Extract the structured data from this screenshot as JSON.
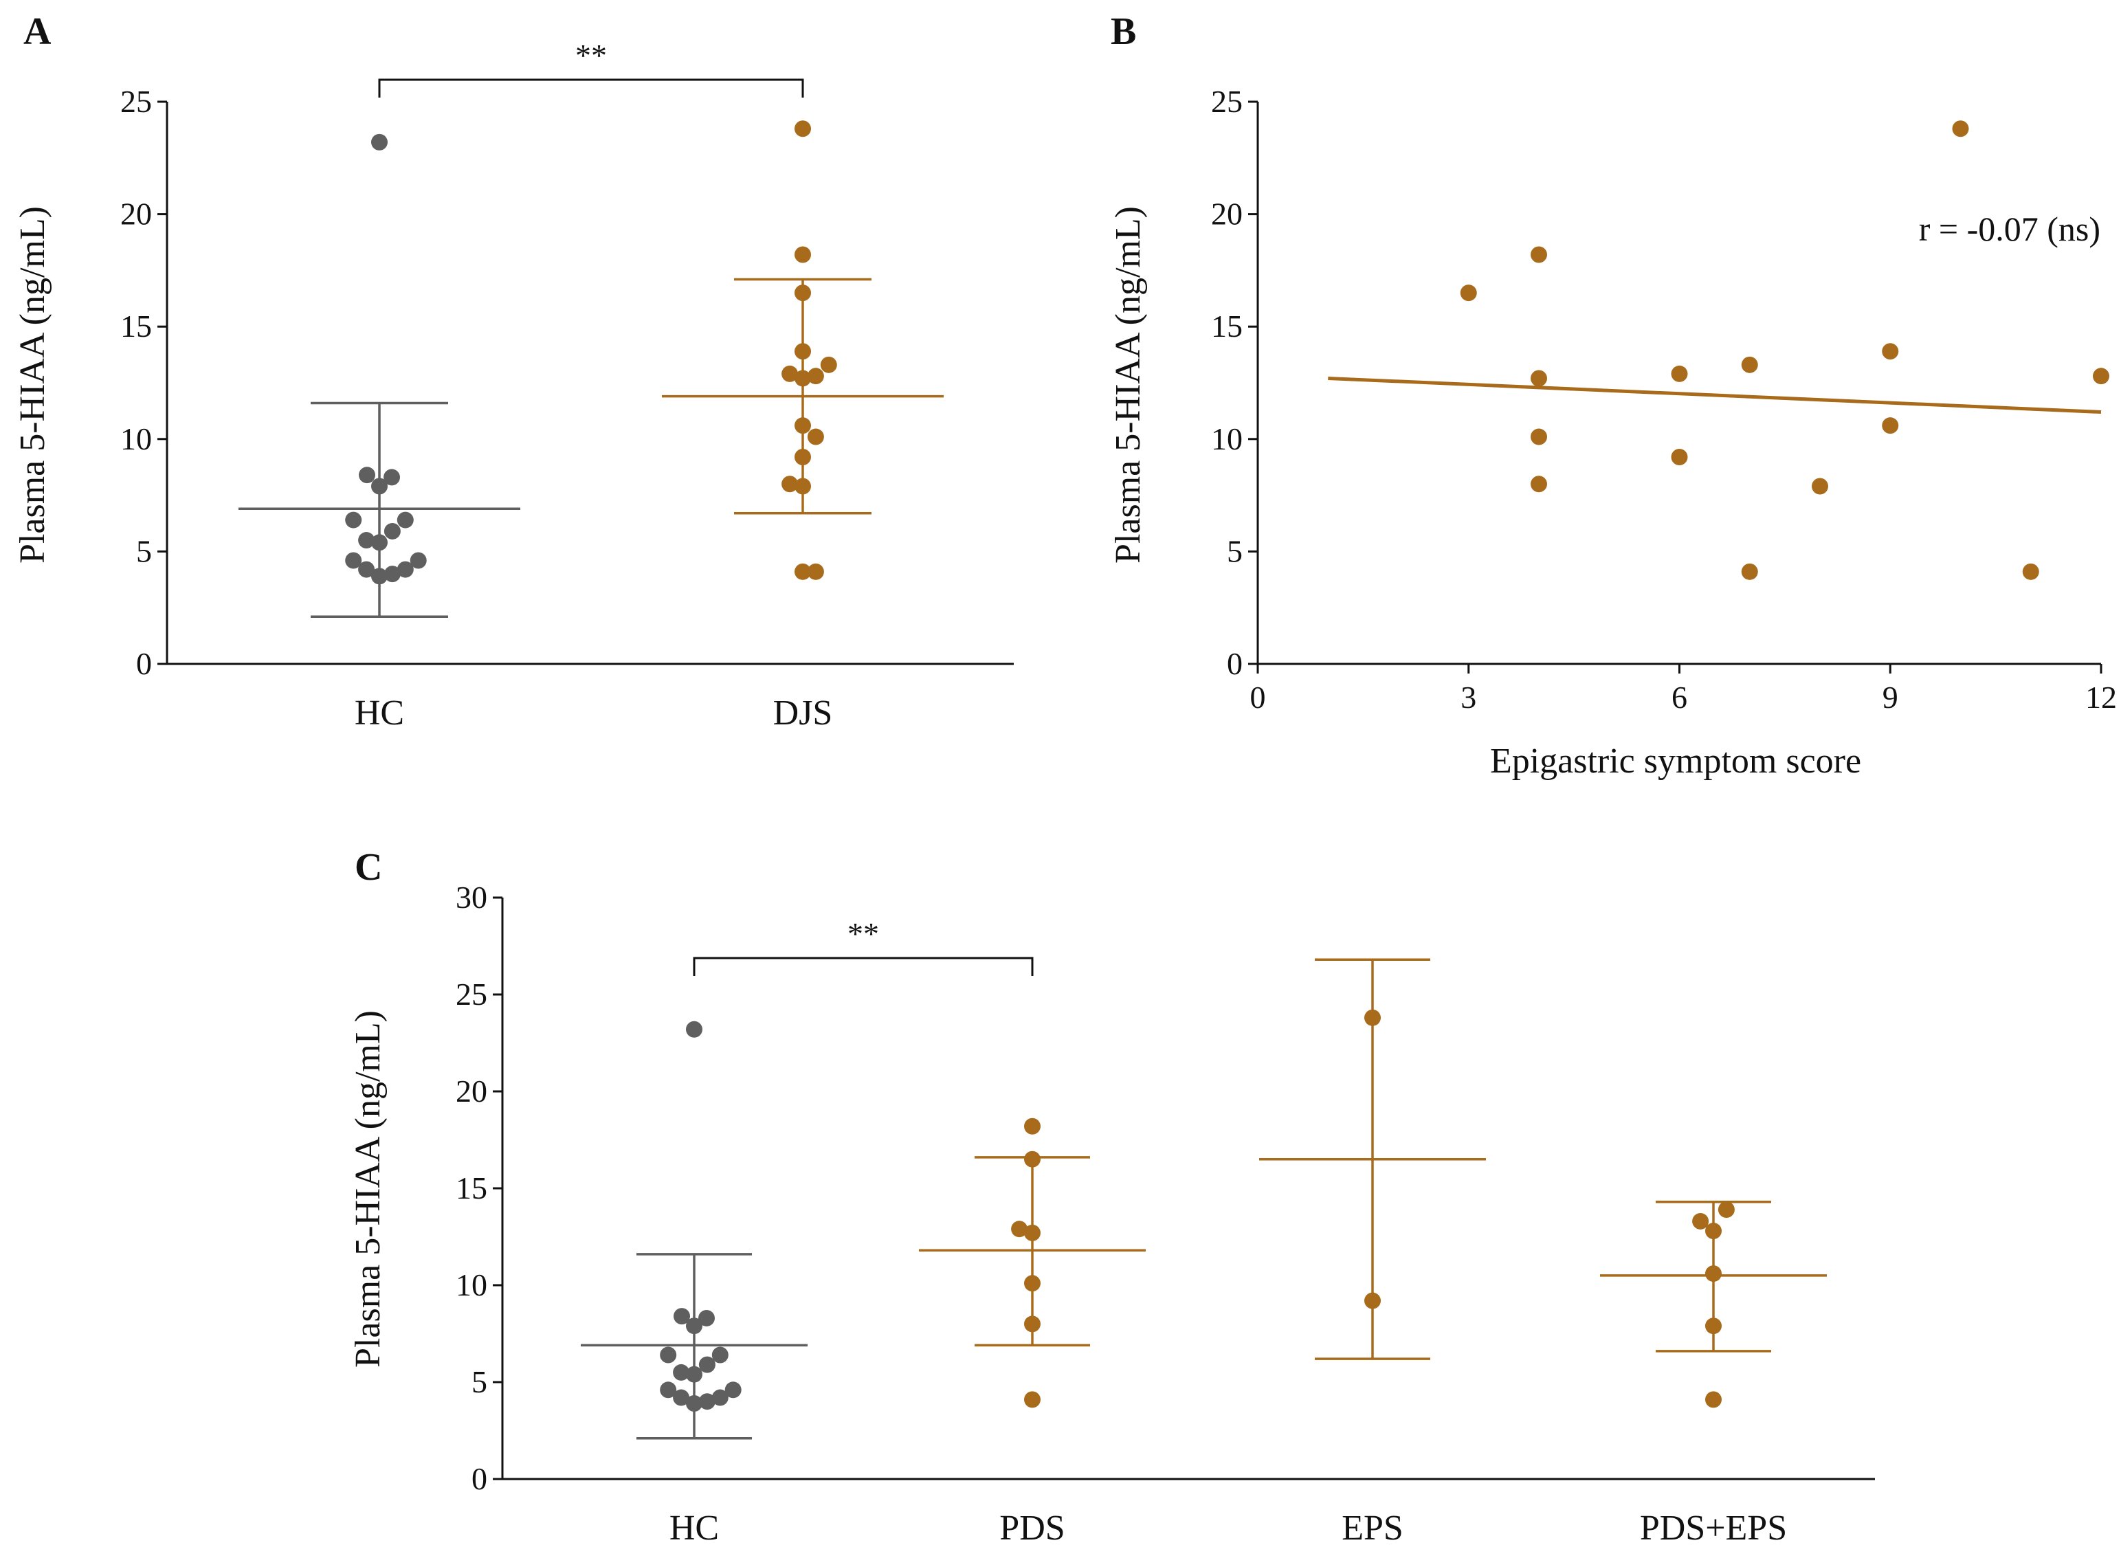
{
  "colors": {
    "hc": "#5f5f5f",
    "fd": "#a86b1b",
    "axis": "#111111"
  },
  "chart_data": [
    {
      "panel": "A",
      "type": "scatter",
      "ylabel": "Plasma 5-HIAA (ng/mL)",
      "xlabel": "",
      "ylim": [
        0,
        25
      ],
      "yticks": [
        "0",
        "5",
        "10",
        "15",
        "20",
        "25"
      ],
      "categories": [
        "HC",
        "DJS"
      ],
      "significance": [
        {
          "from": 0,
          "to": 1,
          "label": "**"
        }
      ],
      "groups": [
        {
          "name": "HC",
          "color": "#5f5f5f",
          "mean": 6.9,
          "sd_low": 2.1,
          "sd_high": 11.6,
          "points": [
            {
              "v": 23.2,
              "o": 0
            },
            {
              "v": 8.4,
              "o": -0.2
            },
            {
              "v": 8.3,
              "o": 0.2
            },
            {
              "v": 7.9,
              "o": 0
            },
            {
              "v": 6.4,
              "o": -0.42
            },
            {
              "v": 6.4,
              "o": 0.42
            },
            {
              "v": 5.9,
              "o": 0.21
            },
            {
              "v": 5.5,
              "o": -0.21
            },
            {
              "v": 5.4,
              "o": 0
            },
            {
              "v": 4.6,
              "o": -0.42
            },
            {
              "v": 4.6,
              "o": 0.63
            },
            {
              "v": 4.2,
              "o": -0.21
            },
            {
              "v": 4.2,
              "o": 0.42
            },
            {
              "v": 4.0,
              "o": 0.21
            },
            {
              "v": 3.9,
              "o": 0
            }
          ]
        },
        {
          "name": "DJS",
          "color": "#a86b1b",
          "mean": 11.9,
          "sd_low": 6.7,
          "sd_high": 17.1,
          "points": [
            {
              "v": 23.8,
              "o": 0
            },
            {
              "v": 18.2,
              "o": 0
            },
            {
              "v": 16.5,
              "o": 0
            },
            {
              "v": 13.9,
              "o": 0
            },
            {
              "v": 13.3,
              "o": 0.42
            },
            {
              "v": 12.9,
              "o": -0.21
            },
            {
              "v": 12.8,
              "o": 0.21
            },
            {
              "v": 12.7,
              "o": 0
            },
            {
              "v": 10.6,
              "o": 0
            },
            {
              "v": 10.1,
              "o": 0.21
            },
            {
              "v": 9.2,
              "o": 0
            },
            {
              "v": 8.0,
              "o": -0.21
            },
            {
              "v": 7.9,
              "o": 0
            },
            {
              "v": 4.1,
              "o": 0
            },
            {
              "v": 4.1,
              "o": 0.21
            }
          ]
        }
      ]
    },
    {
      "panel": "B",
      "type": "scatter",
      "ylabel": "Plasma 5-HIAA (ng/mL)",
      "xlabel": "Epigastric symptom score",
      "xlim": [
        0,
        12
      ],
      "ylim": [
        0,
        25
      ],
      "xticks": [
        "0",
        "3",
        "6",
        "9",
        "12"
      ],
      "yticks": [
        "0",
        "5",
        "10",
        "15",
        "20",
        "25"
      ],
      "annotation": "r = -0.07 (ns)",
      "color": "#a86b1b",
      "points": [
        {
          "x": 3,
          "y": 16.5
        },
        {
          "x": 4,
          "y": 18.2
        },
        {
          "x": 4,
          "y": 12.7
        },
        {
          "x": 4,
          "y": 10.1
        },
        {
          "x": 4,
          "y": 8.0
        },
        {
          "x": 6,
          "y": 12.9
        },
        {
          "x": 6,
          "y": 9.2
        },
        {
          "x": 7,
          "y": 13.3
        },
        {
          "x": 7,
          "y": 4.1
        },
        {
          "x": 8,
          "y": 7.9
        },
        {
          "x": 9,
          "y": 13.9
        },
        {
          "x": 9,
          "y": 10.6
        },
        {
          "x": 10,
          "y": 23.8
        },
        {
          "x": 11,
          "y": 4.1
        },
        {
          "x": 12,
          "y": 12.8
        }
      ],
      "fit_line": [
        {
          "x": 1,
          "y": 12.7
        },
        {
          "x": 12,
          "y": 11.2
        }
      ]
    },
    {
      "panel": "C",
      "type": "scatter",
      "ylabel": "Plasma 5-HIAA (ng/mL)",
      "xlabel": "",
      "ylim": [
        0,
        30
      ],
      "yticks": [
        "0",
        "5",
        "10",
        "15",
        "20",
        "25",
        "30"
      ],
      "categories": [
        "HC",
        "PDS",
        "EPS",
        "PDS+EPS"
      ],
      "significance": [
        {
          "from": 0,
          "to": 1,
          "label": "**"
        }
      ],
      "groups": [
        {
          "name": "HC",
          "color": "#5f5f5f",
          "mean": 6.9,
          "sd_low": 2.1,
          "sd_high": 11.6,
          "points": [
            {
              "v": 23.2,
              "o": 0
            },
            {
              "v": 8.4,
              "o": -0.2
            },
            {
              "v": 8.3,
              "o": 0.2
            },
            {
              "v": 7.9,
              "o": 0
            },
            {
              "v": 6.4,
              "o": -0.42
            },
            {
              "v": 6.4,
              "o": 0.42
            },
            {
              "v": 5.9,
              "o": 0.21
            },
            {
              "v": 5.5,
              "o": -0.21
            },
            {
              "v": 5.4,
              "o": 0
            },
            {
              "v": 4.6,
              "o": -0.42
            },
            {
              "v": 4.6,
              "o": 0.63
            },
            {
              "v": 4.2,
              "o": -0.21
            },
            {
              "v": 4.2,
              "o": 0.42
            },
            {
              "v": 4.0,
              "o": 0.21
            },
            {
              "v": 3.9,
              "o": 0
            }
          ]
        },
        {
          "name": "PDS",
          "color": "#a86b1b",
          "mean": 11.8,
          "sd_low": 6.9,
          "sd_high": 16.6,
          "points": [
            {
              "v": 18.2,
              "o": 0
            },
            {
              "v": 16.5,
              "o": 0
            },
            {
              "v": 12.9,
              "o": -0.21
            },
            {
              "v": 12.7,
              "o": 0
            },
            {
              "v": 10.1,
              "o": 0
            },
            {
              "v": 8.0,
              "o": 0
            },
            {
              "v": 4.1,
              "o": 0
            }
          ]
        },
        {
          "name": "EPS",
          "color": "#a86b1b",
          "mean": 16.5,
          "sd_low": 6.2,
          "sd_high": 26.8,
          "points": [
            {
              "v": 23.8,
              "o": 0
            },
            {
              "v": 9.2,
              "o": 0
            }
          ]
        },
        {
          "name": "PDS+EPS",
          "color": "#a86b1b",
          "mean": 10.5,
          "sd_low": 6.6,
          "sd_high": 14.3,
          "points": [
            {
              "v": 13.9,
              "o": 0.21
            },
            {
              "v": 13.3,
              "o": -0.21
            },
            {
              "v": 12.8,
              "o": 0
            },
            {
              "v": 10.6,
              "o": 0
            },
            {
              "v": 7.9,
              "o": 0
            },
            {
              "v": 4.1,
              "o": 0
            }
          ]
        }
      ]
    }
  ]
}
